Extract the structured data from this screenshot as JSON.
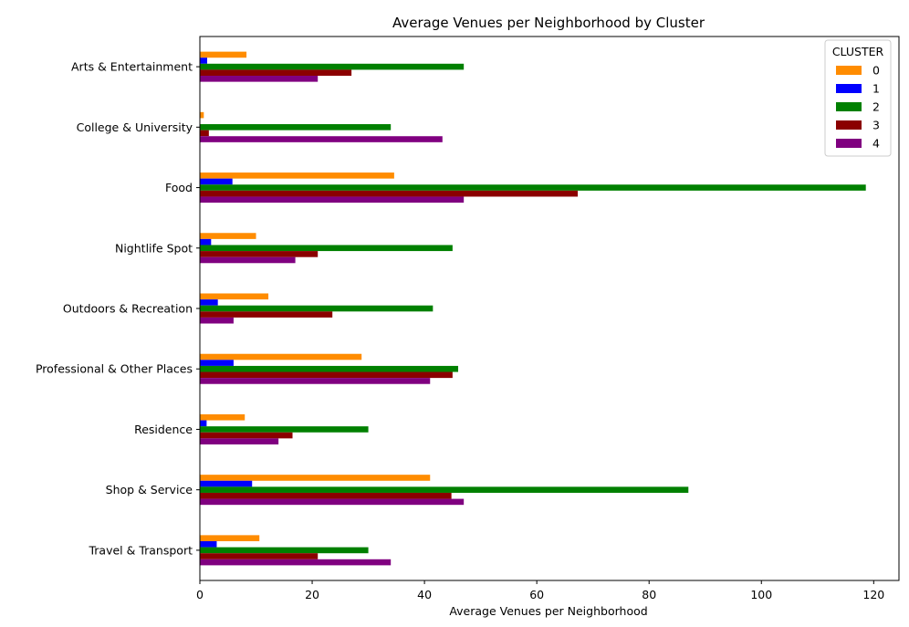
{
  "chart_data": {
    "type": "bar",
    "orientation": "horizontal",
    "title": "Average Venues per Neighborhood by Cluster",
    "xlabel": "Average Venues per Neighborhood",
    "ylabel": "",
    "xlim": [
      0,
      124.5
    ],
    "x_ticks": [
      0,
      20,
      40,
      60,
      80,
      100,
      120
    ],
    "grid": false,
    "legend": {
      "title": "CLUSTER",
      "placement": "top-right"
    },
    "categories": [
      "Arts & Entertainment",
      "College & University",
      "Food",
      "Nightlife Spot",
      "Outdoors & Recreation",
      "Professional & Other Places",
      "Residence",
      "Shop & Service",
      "Travel & Transport"
    ],
    "series": [
      {
        "name": "0",
        "color": "#ff8c00",
        "values": [
          8.3,
          0.7,
          34.6,
          10.0,
          12.2,
          28.8,
          8.0,
          41.0,
          10.6
        ]
      },
      {
        "name": "1",
        "color": "#0000ff",
        "values": [
          1.3,
          0.0,
          5.8,
          2.0,
          3.2,
          6.0,
          1.2,
          9.3,
          3.0
        ]
      },
      {
        "name": "2",
        "color": "#008000",
        "values": [
          47.0,
          34.0,
          118.6,
          45.0,
          41.5,
          46.0,
          30.0,
          87.0,
          30.0
        ]
      },
      {
        "name": "3",
        "color": "#8b0000",
        "values": [
          27.0,
          1.6,
          67.3,
          21.0,
          23.6,
          45.0,
          16.5,
          44.8,
          21.0
        ]
      },
      {
        "name": "4",
        "color": "#800080",
        "values": [
          21.0,
          43.2,
          47.0,
          17.0,
          6.0,
          41.0,
          14.0,
          47.0,
          34.0
        ]
      }
    ]
  }
}
